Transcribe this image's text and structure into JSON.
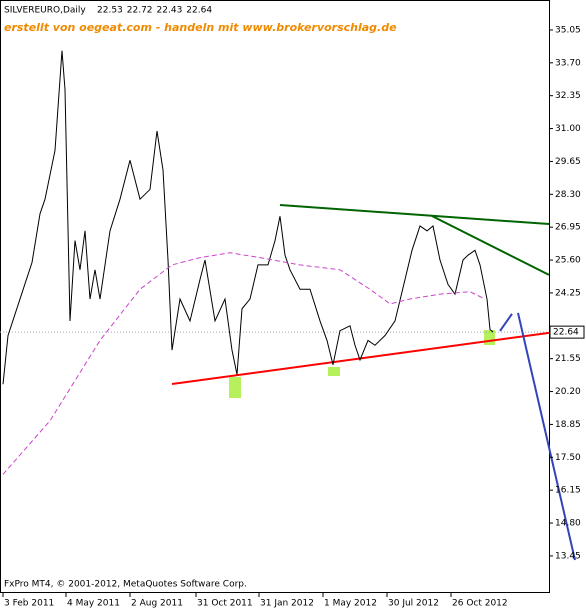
{
  "chart_data": {
    "type": "line",
    "title": "SILVEREURO,Daily",
    "ohlc": [
      22.53,
      22.72,
      22.43,
      22.64
    ],
    "annotation": "erstellt von oegeat.com - handeln mit www.brokervorschlag.de",
    "footer": "FxPro MT4, © 2001-2012, MetaQuotes Software Corp.",
    "xlim": [
      -3,
      546
    ],
    "ylim": [
      12.05,
      36.28
    ],
    "xticks": [
      {
        "value": 0,
        "label": "3 Feb 2011"
      },
      {
        "value": 63,
        "label": "4 May 2011"
      },
      {
        "value": 127,
        "label": "2 Aug 2011"
      },
      {
        "value": 193,
        "label": "31 Oct 2011"
      },
      {
        "value": 256,
        "label": "31 Jan 2012"
      },
      {
        "value": 320,
        "label": "1 May 2012"
      },
      {
        "value": 384,
        "label": "30 Jul 2012"
      },
      {
        "value": 448,
        "label": "26 Oct 2012"
      }
    ],
    "yticks": [
      35.05,
      {
        "value": 33.7,
        "label": "33.70"
      },
      32.35,
      {
        "value": 31,
        "label": "31.00"
      },
      29.65,
      {
        "value": 28.3,
        "label": "28.30"
      },
      26.95,
      {
        "value": 25.6,
        "label": "25.60"
      },
      24.25,
      21.55,
      {
        "value": 20.2,
        "label": "20.20"
      },
      18.85,
      {
        "value": 17.5,
        "label": "17.50"
      },
      16.15,
      {
        "value": 14.8,
        "label": "14.80"
      },
      13.45
    ],
    "series": [
      {
        "color": "#000000",
        "x": [
          0,
          5,
          13,
          21,
          29,
          37,
          42,
          52,
          59,
          62,
          67,
          72,
          77,
          82,
          87,
          92,
          97,
          107,
          117,
          127,
          137,
          147,
          154,
          160,
          165,
          169,
          177,
          187,
          197,
          202,
          212,
          222,
          229,
          234,
          239,
          247,
          255,
          265,
          272,
          277,
          282,
          287,
          297,
          307,
          317,
          324,
          330,
          337,
          347,
          352,
          357,
          365,
          372,
          382,
          392,
          402,
          409,
          417,
          424,
          430,
          437,
          445,
          452,
          460,
          465,
          472,
          477,
          484,
          487,
          490
        ],
        "values": [
          20.5,
          22.5,
          23.5,
          24.5,
          25.5,
          27.5,
          28.1,
          30.1,
          34.2,
          32.6,
          23.1,
          26.4,
          25.2,
          26.8,
          24.0,
          25.2,
          24.0,
          26.8,
          28.1,
          29.7,
          28.1,
          28.5,
          30.9,
          29.3,
          25.6,
          21.9,
          24.0,
          23.1,
          24.8,
          25.6,
          23.1,
          24.0,
          21.9,
          20.9,
          23.6,
          24.0,
          25.4,
          25.4,
          26.4,
          27.4,
          25.8,
          25.2,
          24.4,
          24.4,
          23.1,
          22.3,
          21.3,
          22.7,
          22.9,
          22.1,
          21.5,
          22.3,
          22.1,
          22.5,
          23.1,
          24.8,
          26.0,
          27.0,
          26.8,
          27.0,
          25.6,
          24.6,
          24.2,
          25.6,
          25.8,
          26.0,
          25.4,
          24.0,
          22.75,
          22.64
        ]
      },
      {
        "color": "#cc44cc",
        "dash": true,
        "x": [
          0,
          47,
          97,
          137,
          169,
          197,
          227,
          257,
          297,
          337,
          367,
          387,
          407,
          437,
          467,
          482
        ],
        "values": [
          16.8,
          19.0,
          22.3,
          24.4,
          25.4,
          25.7,
          25.9,
          25.7,
          25.4,
          25.2,
          24.4,
          23.8,
          24.0,
          24.2,
          24.3,
          24.0
        ]
      }
    ],
    "lines": [
      {
        "color": "#006400",
        "x": [
          277,
          546
        ],
        "y": [
          27.86,
          27.08
        ]
      },
      {
        "color": "#006400",
        "x": [
          429,
          546
        ],
        "y": [
          27.41,
          24.99
        ]
      },
      {
        "color": "#ff0000",
        "x": [
          169,
          546
        ],
        "y": [
          20.51,
          22.61
        ]
      },
      {
        "color": "#3344bb",
        "x": [
          497,
          509
        ],
        "y": [
          22.69,
          23.39
        ]
      },
      {
        "color": "#3344bb",
        "x": [
          515,
          572
        ],
        "y": [
          23.43,
          13.28
        ]
      }
    ]
  }
}
